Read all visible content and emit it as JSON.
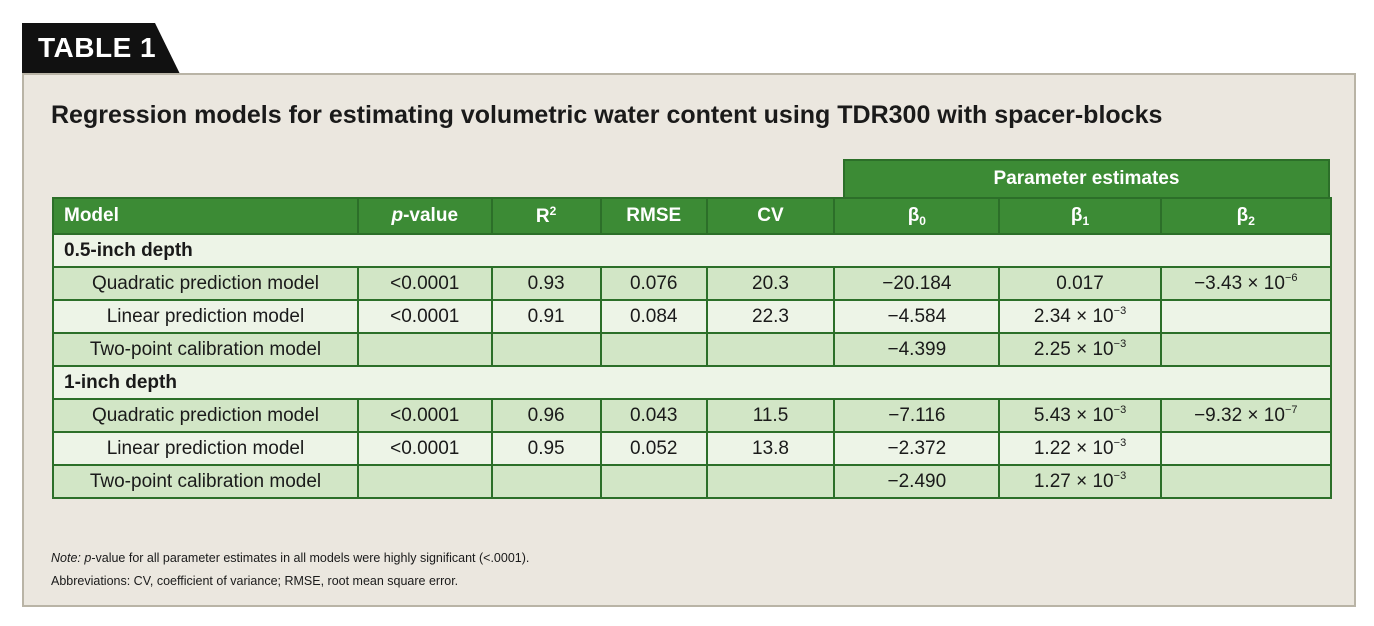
{
  "tag": "TABLE 1",
  "title": "Regression models for estimating volumetric water content using TDR300 with spacer-blocks",
  "group_header": "Parameter estimates",
  "columns": {
    "model": "Model",
    "p_value_italic": "p",
    "p_value_rest": "-value",
    "r2_base": "R",
    "r2_sup": "2",
    "rmse": "RMSE",
    "cv": "CV",
    "beta": "β",
    "b0_sub": "0",
    "b1_sub": "1",
    "b2_sub": "2"
  },
  "sections": [
    {
      "label": "0.5-inch depth",
      "rows": [
        {
          "model": "Quadratic prediction model",
          "p": "<0.0001",
          "r2": "0.93",
          "rmse": "0.076",
          "cv": "20.3",
          "b0": "−20.184",
          "b1": "0.017",
          "b1_exp": "",
          "b2": "−3.43 × 10",
          "b2_exp": "−6"
        },
        {
          "model": "Linear prediction model",
          "p": "<0.0001",
          "r2": "0.91",
          "rmse": "0.084",
          "cv": "22.3",
          "b0": "−4.584",
          "b1": "2.34 × 10",
          "b1_exp": "−3",
          "b2": "",
          "b2_exp": ""
        },
        {
          "model": "Two-point calibration model",
          "p": "",
          "r2": "",
          "rmse": "",
          "cv": "",
          "b0": "−4.399",
          "b1": "2.25 × 10",
          "b1_exp": "−3",
          "b2": "",
          "b2_exp": ""
        }
      ]
    },
    {
      "label": "1-inch depth",
      "rows": [
        {
          "model": "Quadratic prediction model",
          "p": "<0.0001",
          "r2": "0.96",
          "rmse": "0.043",
          "cv": "11.5",
          "b0": "−7.116",
          "b1": "5.43 × 10",
          "b1_exp": "−3",
          "b2": "−9.32 × 10",
          "b2_exp": "−7"
        },
        {
          "model": "Linear prediction model",
          "p": "<0.0001",
          "r2": "0.95",
          "rmse": "0.052",
          "cv": "13.8",
          "b0": "−2.372",
          "b1": "1.22 × 10",
          "b1_exp": "−3",
          "b2": "",
          "b2_exp": ""
        },
        {
          "model": "Two-point calibration model",
          "p": "",
          "r2": "",
          "rmse": "",
          "cv": "",
          "b0": "−2.490",
          "b1": "1.27 × 10",
          "b1_exp": "−3",
          "b2": "",
          "b2_exp": ""
        }
      ]
    }
  ],
  "notes": {
    "note_label": "Note:",
    "note_p_italic": "p",
    "note_text": "-value for all parameter estimates in all models were highly significant (<.0001).",
    "abbreviations": "Abbreviations: CV, coefficient of variance; RMSE, root mean square error."
  },
  "colors": {
    "header_green": "#3c8b35",
    "row_dark": "#d2e6c6",
    "row_light": "#edf4e7",
    "panel_bg": "#ebe7df"
  }
}
